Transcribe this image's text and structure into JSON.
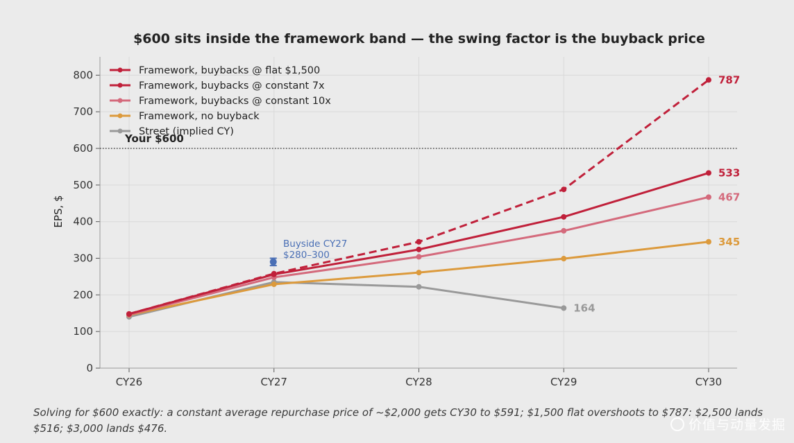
{
  "chart_data": {
    "type": "line",
    "title": "$600 sits inside the framework band — the swing factor is the buyback price",
    "ylabel": "EPS, $",
    "xlabel": "",
    "categories": [
      "CY26",
      "CY27",
      "CY28",
      "CY29",
      "CY30"
    ],
    "ylim": [
      0,
      850
    ],
    "yticks": [
      0,
      100,
      200,
      300,
      400,
      500,
      600,
      700,
      800
    ],
    "grid": true,
    "legend_position": "top-left",
    "series": [
      {
        "name": "Framework, buybacks @ flat $1,500",
        "values": [
          148,
          258,
          345,
          488,
          787
        ],
        "color": "#c0203a",
        "dashed": true,
        "end_label": "787"
      },
      {
        "name": "Framework, buybacks @ constant 7x",
        "values": [
          148,
          256,
          324,
          413,
          533
        ],
        "color": "#c0203a",
        "dashed": false,
        "end_label": "533"
      },
      {
        "name": "Framework, buybacks @ constant 10x",
        "values": [
          146,
          248,
          304,
          375,
          467
        ],
        "color": "#d46a7c",
        "dashed": false,
        "end_label": "467"
      },
      {
        "name": "Framework, no buyback",
        "values": [
          145,
          229,
          261,
          299,
          345
        ],
        "color": "#dc9a3c",
        "dashed": false,
        "end_label": "345"
      },
      {
        "name": "Street (implied CY)",
        "values": [
          140,
          235,
          222,
          164,
          null
        ],
        "color": "#999999",
        "dashed": false,
        "end_label": "164"
      }
    ],
    "reference_line": {
      "value": 600,
      "label": "Your $600"
    },
    "buyside": {
      "x": "CY27",
      "low": 280,
      "high": 300,
      "mid": 290,
      "label_line1": "Buyside CY27",
      "label_line2": "$280–300",
      "color": "#4a6fb5"
    }
  },
  "caption": "Solving for $600 exactly: a constant average repurchase price of ~$2,000 gets CY30 to $591; $1,500 flat overshoots to $787: $2,500 lands $516; $3,000 lands $476.",
  "watermark": "价值与动量发掘"
}
